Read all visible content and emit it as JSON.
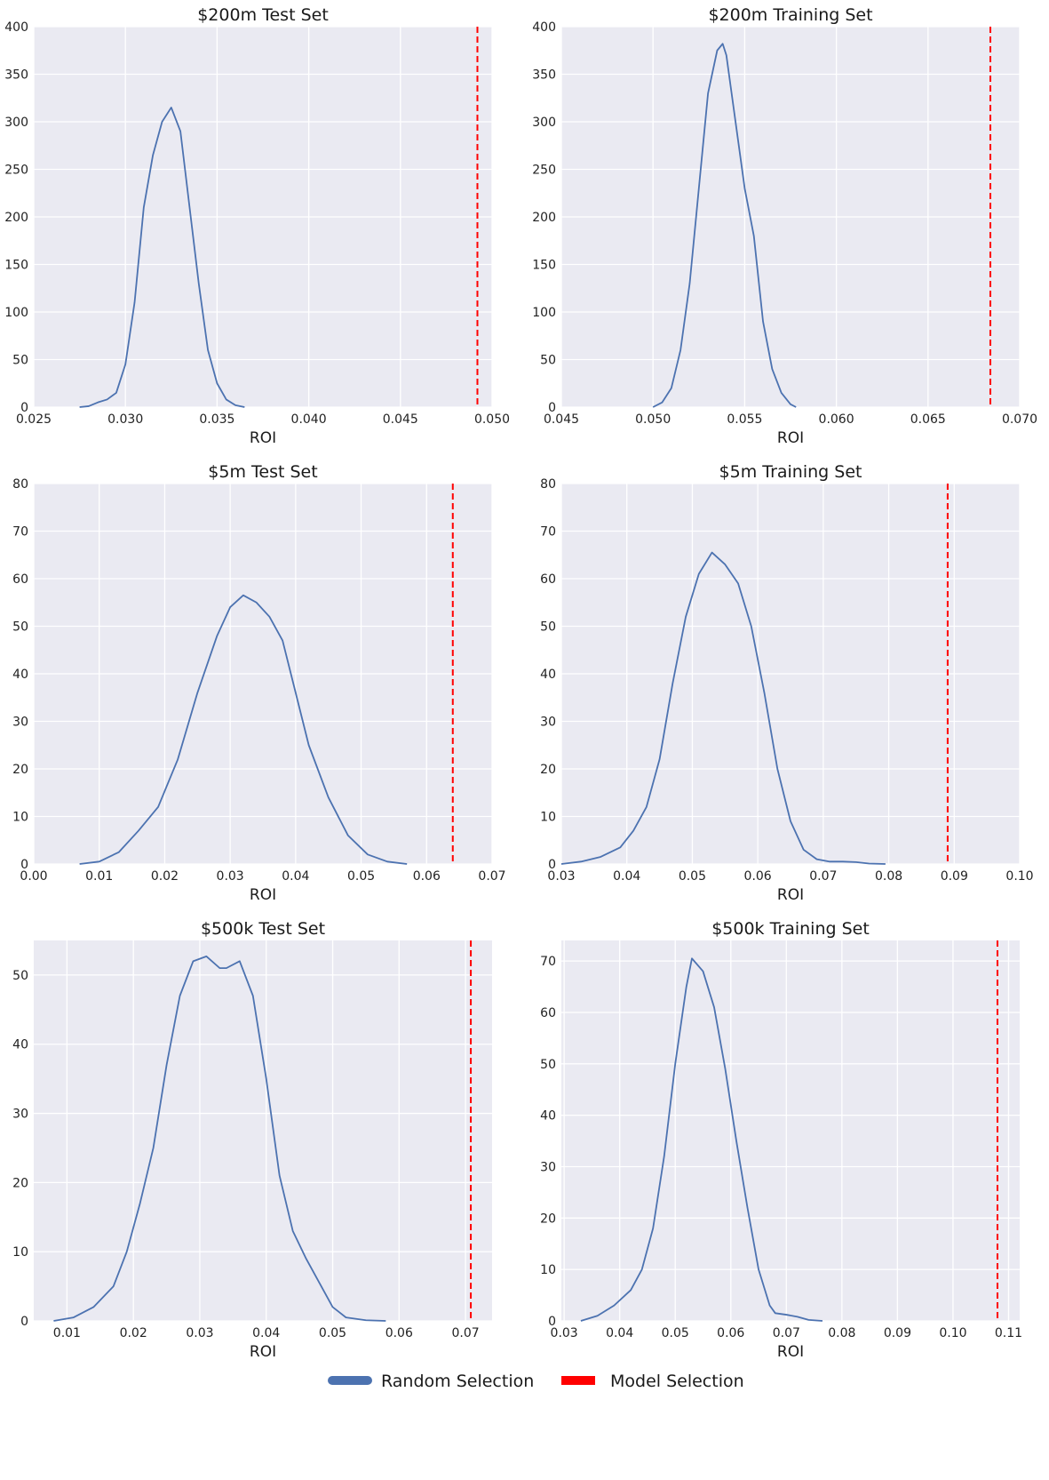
{
  "legend": {
    "random_label": "Random Selection",
    "model_label": "Model Selection",
    "random_color": "#4c72b0",
    "model_color": "#ff0000"
  },
  "chart_data": [
    {
      "type": "line",
      "title": "$200m Test Set",
      "xlabel": "ROI",
      "ylabel": "",
      "xlim": [
        0.025,
        0.05
      ],
      "ylim": [
        0,
        400
      ],
      "xticks": [
        0.025,
        0.03,
        0.035,
        0.04,
        0.045,
        0.05
      ],
      "xtick_labels": [
        "0.025",
        "0.030",
        "0.035",
        "0.040",
        "0.045",
        "0.050"
      ],
      "yticks": [
        0,
        50,
        100,
        150,
        200,
        250,
        300,
        350,
        400
      ],
      "ytick_labels": [
        "0",
        "50",
        "100",
        "150",
        "200",
        "250",
        "300",
        "350",
        "400"
      ],
      "series": [
        {
          "name": "Random Selection",
          "x": [
            0.0275,
            0.028,
            0.0285,
            0.029,
            0.0295,
            0.03,
            0.0305,
            0.031,
            0.0315,
            0.032,
            0.0325,
            0.033,
            0.0335,
            0.034,
            0.0345,
            0.035,
            0.0355,
            0.036,
            0.0365
          ],
          "y": [
            0,
            1,
            5,
            8,
            15,
            45,
            110,
            210,
            265,
            300,
            315,
            290,
            210,
            130,
            60,
            25,
            8,
            2,
            0
          ]
        }
      ],
      "model_roi": 0.0492
    },
    {
      "type": "line",
      "title": "$200m Training Set",
      "xlabel": "ROI",
      "ylabel": "",
      "xlim": [
        0.045,
        0.07
      ],
      "ylim": [
        0,
        400
      ],
      "xticks": [
        0.045,
        0.05,
        0.055,
        0.06,
        0.065,
        0.07
      ],
      "xtick_labels": [
        "0.045",
        "0.050",
        "0.055",
        "0.060",
        "0.065",
        "0.070"
      ],
      "yticks": [
        0,
        50,
        100,
        150,
        200,
        250,
        300,
        350,
        400
      ],
      "ytick_labels": [
        "0",
        "50",
        "100",
        "150",
        "200",
        "250",
        "300",
        "350",
        "400"
      ],
      "series": [
        {
          "name": "Random Selection",
          "x": [
            0.05,
            0.0505,
            0.051,
            0.0515,
            0.052,
            0.0525,
            0.053,
            0.0535,
            0.0538,
            0.054,
            0.0545,
            0.055,
            0.0555,
            0.056,
            0.0565,
            0.057,
            0.0575,
            0.0578
          ],
          "y": [
            0,
            5,
            20,
            60,
            130,
            230,
            330,
            375,
            382,
            370,
            300,
            230,
            180,
            90,
            40,
            15,
            3,
            0
          ]
        }
      ],
      "model_roi": 0.0684
    },
    {
      "type": "line",
      "title": "$5m Test Set",
      "xlabel": "ROI",
      "ylabel": "",
      "xlim": [
        0.0,
        0.07
      ],
      "ylim": [
        0,
        80
      ],
      "xticks": [
        0.0,
        0.01,
        0.02,
        0.03,
        0.04,
        0.05,
        0.06,
        0.07
      ],
      "xtick_labels": [
        "0.00",
        "0.01",
        "0.02",
        "0.03",
        "0.04",
        "0.05",
        "0.06",
        "0.07"
      ],
      "yticks": [
        0,
        10,
        20,
        30,
        40,
        50,
        60,
        70,
        80
      ],
      "ytick_labels": [
        "0",
        "10",
        "20",
        "30",
        "40",
        "50",
        "60",
        "70",
        "80"
      ],
      "series": [
        {
          "name": "Random Selection",
          "x": [
            0.007,
            0.01,
            0.013,
            0.016,
            0.019,
            0.022,
            0.025,
            0.028,
            0.03,
            0.032,
            0.034,
            0.036,
            0.038,
            0.04,
            0.042,
            0.045,
            0.048,
            0.051,
            0.054,
            0.057
          ],
          "y": [
            0,
            0.5,
            2.5,
            7,
            12,
            22,
            36,
            48,
            54,
            56.5,
            55,
            52,
            47,
            36,
            25,
            14,
            6,
            2,
            0.5,
            0
          ]
        }
      ],
      "model_roi": 0.064
    },
    {
      "type": "line",
      "title": "$5m Training Set",
      "xlabel": "ROI",
      "ylabel": "",
      "xlim": [
        0.03,
        0.1
      ],
      "ylim": [
        0,
        80
      ],
      "xticks": [
        0.03,
        0.04,
        0.05,
        0.06,
        0.07,
        0.08,
        0.09,
        0.1
      ],
      "xtick_labels": [
        "0.03",
        "0.04",
        "0.05",
        "0.06",
        "0.07",
        "0.08",
        "0.09",
        "0.10"
      ],
      "yticks": [
        0,
        10,
        20,
        30,
        40,
        50,
        60,
        70,
        80
      ],
      "ytick_labels": [
        "0",
        "10",
        "20",
        "30",
        "40",
        "50",
        "60",
        "70",
        "80"
      ],
      "series": [
        {
          "name": "Random Selection",
          "x": [
            0.03,
            0.033,
            0.036,
            0.039,
            0.041,
            0.043,
            0.045,
            0.047,
            0.049,
            0.051,
            0.053,
            0.055,
            0.057,
            0.059,
            0.061,
            0.063,
            0.065,
            0.067,
            0.069,
            0.071,
            0.073,
            0.075,
            0.077,
            0.0795
          ],
          "y": [
            0,
            0.5,
            1.5,
            3.5,
            7,
            12,
            22,
            38,
            52,
            61,
            65.5,
            63,
            59,
            50,
            36,
            20,
            9,
            3,
            1,
            0.5,
            0.5,
            0.4,
            0.1,
            0
          ]
        }
      ],
      "model_roi": 0.089
    },
    {
      "type": "line",
      "title": "$500k Test Set",
      "xlabel": "ROI",
      "ylabel": "",
      "xlim": [
        0.005,
        0.074
      ],
      "ylim": [
        0,
        55
      ],
      "xticks": [
        0.01,
        0.02,
        0.03,
        0.04,
        0.05,
        0.06,
        0.07
      ],
      "xtick_labels": [
        "0.01",
        "0.02",
        "0.03",
        "0.04",
        "0.05",
        "0.06",
        "0.07"
      ],
      "yticks": [
        0,
        10,
        20,
        30,
        40,
        50
      ],
      "ytick_labels": [
        "0",
        "10",
        "20",
        "30",
        "40",
        "50"
      ],
      "series": [
        {
          "name": "Random Selection",
          "x": [
            0.008,
            0.011,
            0.014,
            0.017,
            0.019,
            0.021,
            0.023,
            0.025,
            0.027,
            0.029,
            0.031,
            0.033,
            0.034,
            0.036,
            0.038,
            0.04,
            0.042,
            0.044,
            0.046,
            0.048,
            0.05,
            0.052,
            0.055,
            0.058
          ],
          "y": [
            0,
            0.5,
            2,
            5,
            10,
            17,
            25,
            37,
            47,
            52,
            52.7,
            51,
            51,
            52,
            47,
            35,
            21,
            13,
            9,
            5.5,
            2,
            0.5,
            0.1,
            0
          ]
        }
      ],
      "model_roi": 0.0708
    },
    {
      "type": "line",
      "title": "$500k Training Set",
      "xlabel": "ROI",
      "ylabel": "",
      "xlim": [
        0.0295,
        0.112
      ],
      "ylim": [
        0,
        74
      ],
      "xticks": [
        0.03,
        0.04,
        0.05,
        0.06,
        0.07,
        0.08,
        0.09,
        0.1,
        0.11
      ],
      "xtick_labels": [
        "0.03",
        "0.04",
        "0.05",
        "0.06",
        "0.07",
        "0.08",
        "0.09",
        "0.10",
        "0.11"
      ],
      "yticks": [
        0,
        10,
        20,
        30,
        40,
        50,
        60,
        70
      ],
      "ytick_labels": [
        "0",
        "10",
        "20",
        "30",
        "40",
        "50",
        "60",
        "70"
      ],
      "series": [
        {
          "name": "Random Selection",
          "x": [
            0.033,
            0.036,
            0.039,
            0.042,
            0.044,
            0.046,
            0.048,
            0.05,
            0.052,
            0.053,
            0.055,
            0.057,
            0.059,
            0.061,
            0.063,
            0.065,
            0.067,
            0.068,
            0.07,
            0.072,
            0.074,
            0.0765
          ],
          "y": [
            0,
            1,
            3,
            6,
            10,
            18,
            32,
            50,
            65,
            70.5,
            68,
            61,
            49,
            35,
            22,
            10,
            3,
            1.5,
            1.2,
            0.8,
            0.2,
            0
          ]
        }
      ],
      "model_roi": 0.108
    }
  ]
}
